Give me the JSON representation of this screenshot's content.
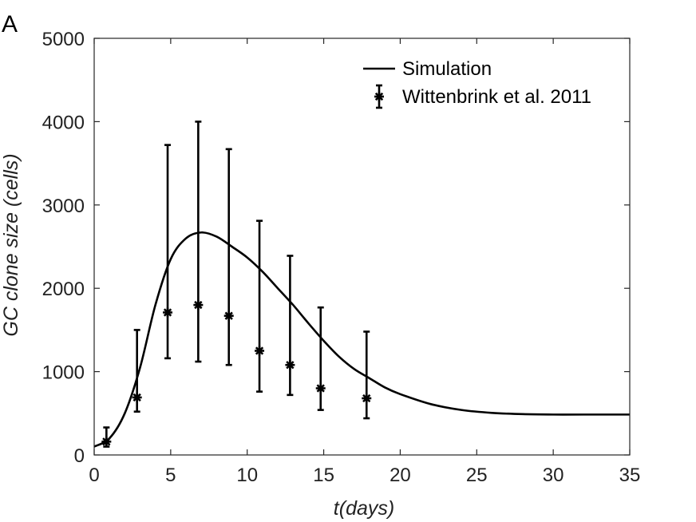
{
  "panel_label": "A",
  "chart_data": {
    "type": "line",
    "xlabel": "t(days)",
    "ylabel": "GC clone size (cells)",
    "xlim": [
      0,
      35
    ],
    "ylim": [
      0,
      5000
    ],
    "xticks": [
      0,
      5,
      10,
      15,
      20,
      25,
      30,
      35
    ],
    "yticks": [
      0,
      1000,
      2000,
      3000,
      4000,
      5000
    ],
    "grid": false,
    "legend_position": "top-right",
    "legend": [
      "Simulation",
      "Wittenbrink et al. 2011"
    ],
    "series": [
      {
        "name": "Simulation",
        "kind": "line",
        "x": [
          0,
          1,
          2,
          3,
          4,
          5,
          6,
          7,
          8,
          9,
          10,
          11,
          12,
          13,
          14,
          15,
          16,
          17,
          18,
          19,
          20,
          22,
          24,
          26,
          28,
          30,
          32,
          35
        ],
        "y": [
          100,
          200,
          500,
          1050,
          1800,
          2350,
          2600,
          2670,
          2620,
          2500,
          2370,
          2200,
          2000,
          1800,
          1580,
          1370,
          1180,
          1030,
          920,
          810,
          730,
          610,
          540,
          505,
          490,
          485,
          485,
          485
        ]
      },
      {
        "name": "Wittenbrink et al. 2011",
        "kind": "errorbar",
        "x": [
          0.8,
          2.8,
          4.8,
          6.8,
          8.8,
          10.8,
          12.8,
          14.8,
          17.8
        ],
        "y": [
          160,
          690,
          1710,
          1800,
          1670,
          1250,
          1080,
          800,
          680
        ],
        "y_low": [
          100,
          520,
          1160,
          1120,
          1080,
          760,
          720,
          540,
          440
        ],
        "y_high": [
          330,
          1500,
          3720,
          4000,
          3670,
          2810,
          2390,
          1770,
          1480
        ]
      }
    ]
  }
}
